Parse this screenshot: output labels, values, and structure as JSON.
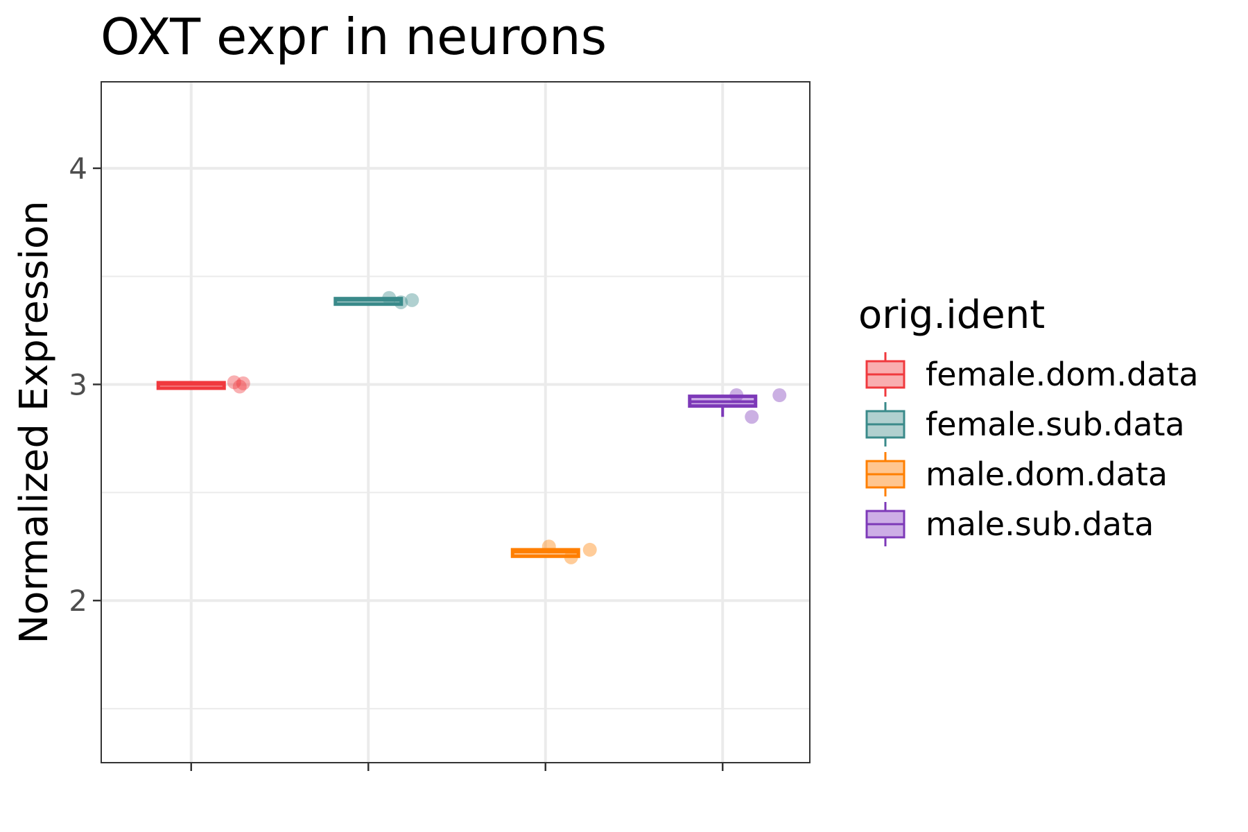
{
  "chart_data": {
    "type": "box",
    "title": "OXT expr in neurons",
    "xlabel": "",
    "ylabel": "Normalized Expression",
    "ylim": [
      1.25,
      4.4
    ],
    "yticks": [
      2,
      3,
      4
    ],
    "grid": true,
    "legend": {
      "title": "orig.ident",
      "placement": "right"
    },
    "series": [
      {
        "name": "female.dom.data",
        "color": "#f0393e",
        "fill": "#f9aeb0",
        "box": {
          "q1": 2.995,
          "median": 3.0,
          "q3": 3.008,
          "whisker_low": 2.995,
          "whisker_high": 3.008
        },
        "points": [
          3.01,
          3.005,
          2.99
        ]
      },
      {
        "name": "female.sub.data",
        "color": "#3a8a8a",
        "fill": "#b1d0cf",
        "box": {
          "q1": 3.385,
          "median": 3.39,
          "q3": 3.397,
          "whisker_low": 3.385,
          "whisker_high": 3.397
        },
        "points": [
          3.4,
          3.38,
          3.39
        ]
      },
      {
        "name": "male.dom.data",
        "color": "#ff7f00",
        "fill": "#ffc690",
        "box": {
          "q1": 2.205,
          "median": 2.225,
          "q3": 2.235,
          "whisker_low": 2.205,
          "whisker_high": 2.24
        },
        "points": [
          2.25,
          2.2,
          2.235
        ]
      },
      {
        "name": "male.sub.data",
        "color": "#7d39b8",
        "fill": "#cdaee6",
        "box": {
          "q1": 2.9,
          "median": 2.92,
          "q3": 2.945,
          "whisker_low": 2.85,
          "whisker_high": 2.945
        },
        "points": [
          2.95,
          2.85,
          2.95
        ]
      }
    ]
  }
}
